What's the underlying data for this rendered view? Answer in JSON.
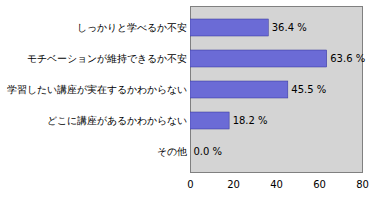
{
  "chart_data": {
    "type": "bar",
    "orientation": "horizontal",
    "categories": [
      "しっかりと学べるか不安",
      "モチベーションが維持できるか不安",
      "学習したい講座が実在するかわからない",
      "どこに講座があるかわからない",
      "その他"
    ],
    "values": [
      36.4,
      63.6,
      45.5,
      18.2,
      0.0
    ],
    "value_labels": [
      "36.4 %",
      "63.6 %",
      "45.5 %",
      "18.2 %",
      "0.0 %"
    ],
    "data_labels": true,
    "color": "#6b6bd6",
    "xlim": [
      0,
      80
    ],
    "xticks": [
      0,
      20,
      40,
      60,
      80
    ],
    "grid": false
  }
}
